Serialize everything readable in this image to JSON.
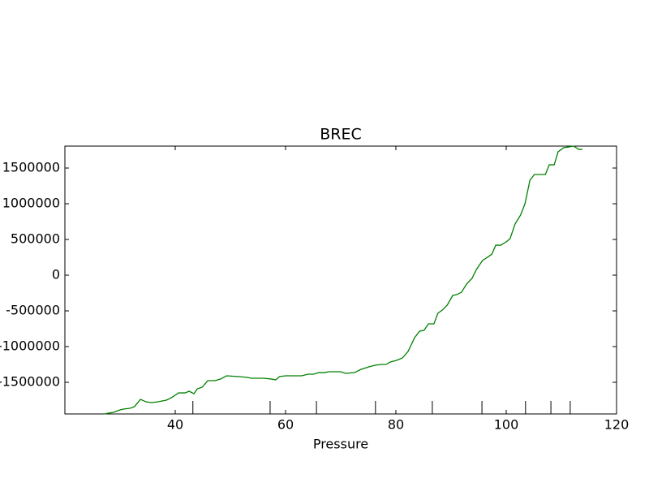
{
  "chart_data": {
    "type": "line",
    "title": "BREC",
    "x_label": "Pressure",
    "x": [
      27.1,
      28.8,
      30,
      30.6,
      31.8,
      32.6,
      33.7,
      34.7,
      35.7,
      36.9,
      38.4,
      39.3,
      40.6,
      41.8,
      42.5,
      43.4,
      44,
      44.9,
      45.9,
      47.2,
      48.2,
      49.3,
      51.6,
      53.1,
      53.8,
      56,
      57.5,
      58.2,
      58.9,
      60,
      62.9,
      64.1,
      65.1,
      66,
      67.1,
      67.8,
      70,
      70.9,
      72.5,
      73.7,
      75.1,
      76.2,
      77.4,
      78.2,
      79,
      80.1,
      81.2,
      82.2,
      83.4,
      84.3,
      85.1,
      85.9,
      86.9,
      87.6,
      88.4,
      89.3,
      90.3,
      91,
      91.9,
      92.8,
      93.8,
      94.6,
      95.7,
      96.8,
      97.4,
      98.1,
      99,
      100,
      100.7,
      101.6,
      102.6,
      103.4,
      104.3,
      105.1,
      107.1,
      107.8,
      108.7,
      109.4,
      110.4,
      111.3,
      112.2,
      113.2,
      113.8
    ],
    "series": [
      {
        "color": "#008000",
        "values": [
          -1943000,
          -1920000,
          -1886000,
          -1875000,
          -1864000,
          -1841000,
          -1739000,
          -1773000,
          -1784000,
          -1773000,
          -1750000,
          -1716000,
          -1648000,
          -1648000,
          -1625000,
          -1659000,
          -1591000,
          -1568000,
          -1477000,
          -1477000,
          -1455000,
          -1409000,
          -1420000,
          -1432000,
          -1443000,
          -1443000,
          -1455000,
          -1466000,
          -1420000,
          -1409000,
          -1409000,
          -1386000,
          -1386000,
          -1364000,
          -1364000,
          -1352000,
          -1352000,
          -1375000,
          -1364000,
          -1318000,
          -1284000,
          -1261000,
          -1250000,
          -1250000,
          -1216000,
          -1193000,
          -1159000,
          -1068000,
          -875000,
          -784000,
          -773000,
          -682000,
          -682000,
          -534000,
          -489000,
          -420000,
          -284000,
          -273000,
          -239000,
          -125000,
          -45000,
          80000,
          205000,
          261000,
          295000,
          420000,
          420000,
          466000,
          511000,
          716000,
          841000,
          1000000,
          1330000,
          1409000,
          1409000,
          1545000,
          1545000,
          1727000,
          1784000,
          1795000,
          1807000,
          1761000,
          1761000
        ]
      }
    ],
    "rug_x": [
      43.2,
      57.2,
      65.6,
      76.3,
      86.6,
      95.6,
      103.5,
      108.1,
      111.6
    ],
    "xlim": [
      20,
      120
    ],
    "xticks": [
      40,
      60,
      80,
      100,
      120
    ],
    "ylim": [
      -1943000,
      1807000
    ],
    "yticks": [
      -1500000,
      -1000000,
      -500000,
      0,
      500000,
      1000000,
      1500000
    ]
  }
}
